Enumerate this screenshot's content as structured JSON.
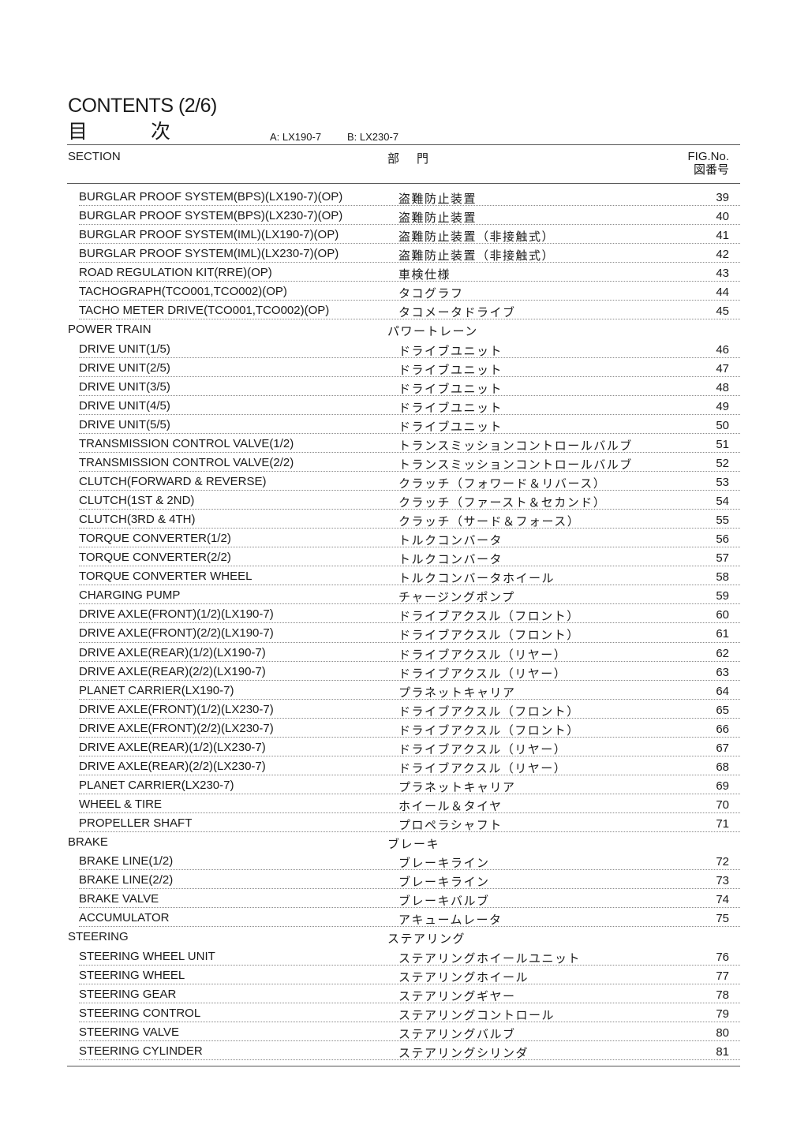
{
  "header": {
    "title": "CONTENTS (2/6)",
    "title_jp": "目次",
    "model_a": "A: LX190-7",
    "model_b": "B: LX230-7"
  },
  "columns": {
    "section": "SECTION",
    "dept": "部門",
    "fig_en": "FIG.No.",
    "fig_jp": "図番号"
  },
  "rows": [
    {
      "type": "item",
      "en": "BURGLAR PROOF SYSTEM(BPS)(LX190-7)(OP)",
      "jp": "盗難防止装置",
      "fig": "39"
    },
    {
      "type": "item",
      "en": "BURGLAR PROOF SYSTEM(BPS)(LX230-7)(OP)",
      "jp": "盗難防止装置",
      "fig": "40"
    },
    {
      "type": "item",
      "en": "BURGLAR PROOF SYSTEM(IML)(LX190-7)(OP)",
      "jp": "盗難防止装置（非接触式）",
      "fig": "41"
    },
    {
      "type": "item",
      "en": "BURGLAR PROOF SYSTEM(IML)(LX230-7)(OP)",
      "jp": "盗難防止装置（非接触式）",
      "fig": "42"
    },
    {
      "type": "item",
      "en": "ROAD REGULATION KIT(RRE)(OP)",
      "jp": "車検仕様",
      "fig": "43"
    },
    {
      "type": "item",
      "en": "TACHOGRAPH(TCO001,TCO002)(OP)",
      "jp": "タコグラフ",
      "fig": "44"
    },
    {
      "type": "item",
      "en": "TACHO METER DRIVE(TCO001,TCO002)(OP)",
      "jp": "タコメータドライブ",
      "fig": "45"
    },
    {
      "type": "section",
      "en": "POWER TRAIN",
      "jp": "パワートレーン",
      "fig": ""
    },
    {
      "type": "item",
      "en": "DRIVE UNIT(1/5)",
      "jp": "ドライブユニット",
      "fig": "46"
    },
    {
      "type": "item",
      "en": "DRIVE UNIT(2/5)",
      "jp": "ドライブユニット",
      "fig": "47"
    },
    {
      "type": "item",
      "en": "DRIVE UNIT(3/5)",
      "jp": "ドライブユニット",
      "fig": "48"
    },
    {
      "type": "item",
      "en": "DRIVE UNIT(4/5)",
      "jp": "ドライブユニット",
      "fig": "49"
    },
    {
      "type": "item",
      "en": "DRIVE UNIT(5/5)",
      "jp": "ドライブユニット",
      "fig": "50"
    },
    {
      "type": "item",
      "en": "TRANSMISSION CONTROL VALVE(1/2)",
      "jp": "トランスミッションコントロールバルブ",
      "fig": "51"
    },
    {
      "type": "item",
      "en": "TRANSMISSION CONTROL VALVE(2/2)",
      "jp": "トランスミッションコントロールバルブ",
      "fig": "52"
    },
    {
      "type": "item",
      "en": "CLUTCH(FORWARD & REVERSE)",
      "jp": "クラッチ（フォワード＆リバース）",
      "fig": "53"
    },
    {
      "type": "item",
      "en": "CLUTCH(1ST & 2ND)",
      "jp": "クラッチ（ファースト＆セカンド）",
      "fig": "54"
    },
    {
      "type": "item",
      "en": "CLUTCH(3RD & 4TH)",
      "jp": "クラッチ（サード＆フォース）",
      "fig": "55"
    },
    {
      "type": "item",
      "en": "TORQUE CONVERTER(1/2)",
      "jp": "トルクコンバータ",
      "fig": "56"
    },
    {
      "type": "item",
      "en": "TORQUE CONVERTER(2/2)",
      "jp": "トルクコンバータ",
      "fig": "57"
    },
    {
      "type": "item",
      "en": "TORQUE CONVERTER WHEEL",
      "jp": "トルクコンバータホイール",
      "fig": "58"
    },
    {
      "type": "item",
      "en": "CHARGING PUMP",
      "jp": "チャージングポンプ",
      "fig": "59"
    },
    {
      "type": "item",
      "en": "DRIVE AXLE(FRONT)(1/2)(LX190-7)",
      "jp": "ドライブアクスル（フロント）",
      "fig": "60"
    },
    {
      "type": "item",
      "en": "DRIVE AXLE(FRONT)(2/2)(LX190-7)",
      "jp": "ドライブアクスル（フロント）",
      "fig": "61"
    },
    {
      "type": "item",
      "en": "DRIVE AXLE(REAR)(1/2)(LX190-7)",
      "jp": "ドライブアクスル（リヤー）",
      "fig": "62"
    },
    {
      "type": "item",
      "en": "DRIVE AXLE(REAR)(2/2)(LX190-7)",
      "jp": "ドライブアクスル（リヤー）",
      "fig": "63"
    },
    {
      "type": "item",
      "en": "PLANET CARRIER(LX190-7)",
      "jp": "プラネットキャリア",
      "fig": "64"
    },
    {
      "type": "item",
      "en": "DRIVE AXLE(FRONT)(1/2)(LX230-7)",
      "jp": "ドライブアクスル（フロント）",
      "fig": "65"
    },
    {
      "type": "item",
      "en": "DRIVE AXLE(FRONT)(2/2)(LX230-7)",
      "jp": "ドライブアクスル（フロント）",
      "fig": "66"
    },
    {
      "type": "item",
      "en": "DRIVE AXLE(REAR)(1/2)(LX230-7)",
      "jp": "ドライブアクスル（リヤー）",
      "fig": "67"
    },
    {
      "type": "item",
      "en": "DRIVE AXLE(REAR)(2/2)(LX230-7)",
      "jp": "ドライブアクスル（リヤー）",
      "fig": "68"
    },
    {
      "type": "item",
      "en": "PLANET CARRIER(LX230-7)",
      "jp": "プラネットキャリア",
      "fig": "69"
    },
    {
      "type": "item",
      "en": "WHEEL & TIRE",
      "jp": "ホイール＆タイヤ",
      "fig": "70"
    },
    {
      "type": "item",
      "en": "PROPELLER SHAFT",
      "jp": "プロペラシャフト",
      "fig": "71"
    },
    {
      "type": "section",
      "en": "BRAKE",
      "jp": "ブレーキ",
      "fig": ""
    },
    {
      "type": "item",
      "en": "BRAKE LINE(1/2)",
      "jp": "ブレーキライン",
      "fig": "72"
    },
    {
      "type": "item",
      "en": "BRAKE LINE(2/2)",
      "jp": "ブレーキライン",
      "fig": "73"
    },
    {
      "type": "item",
      "en": "BRAKE VALVE",
      "jp": "ブレーキバルブ",
      "fig": "74"
    },
    {
      "type": "item",
      "en": "ACCUMULATOR",
      "jp": "アキュームレータ",
      "fig": "75"
    },
    {
      "type": "section",
      "en": "STEERING",
      "jp": "ステアリング",
      "fig": ""
    },
    {
      "type": "item",
      "en": "STEERING WHEEL UNIT",
      "jp": "ステアリングホイールユニット",
      "fig": "76"
    },
    {
      "type": "item",
      "en": "STEERING WHEEL",
      "jp": "ステアリングホイール",
      "fig": "77"
    },
    {
      "type": "item",
      "en": "STEERING GEAR",
      "jp": "ステアリングギヤー",
      "fig": "78"
    },
    {
      "type": "item",
      "en": "STEERING CONTROL",
      "jp": "ステアリングコントロール",
      "fig": "79"
    },
    {
      "type": "item",
      "en": "STEERING VALVE",
      "jp": "ステアリングバルブ",
      "fig": "80"
    },
    {
      "type": "item",
      "en": "STEERING CYLINDER",
      "jp": "ステアリングシリンダ",
      "fig": "81"
    }
  ]
}
